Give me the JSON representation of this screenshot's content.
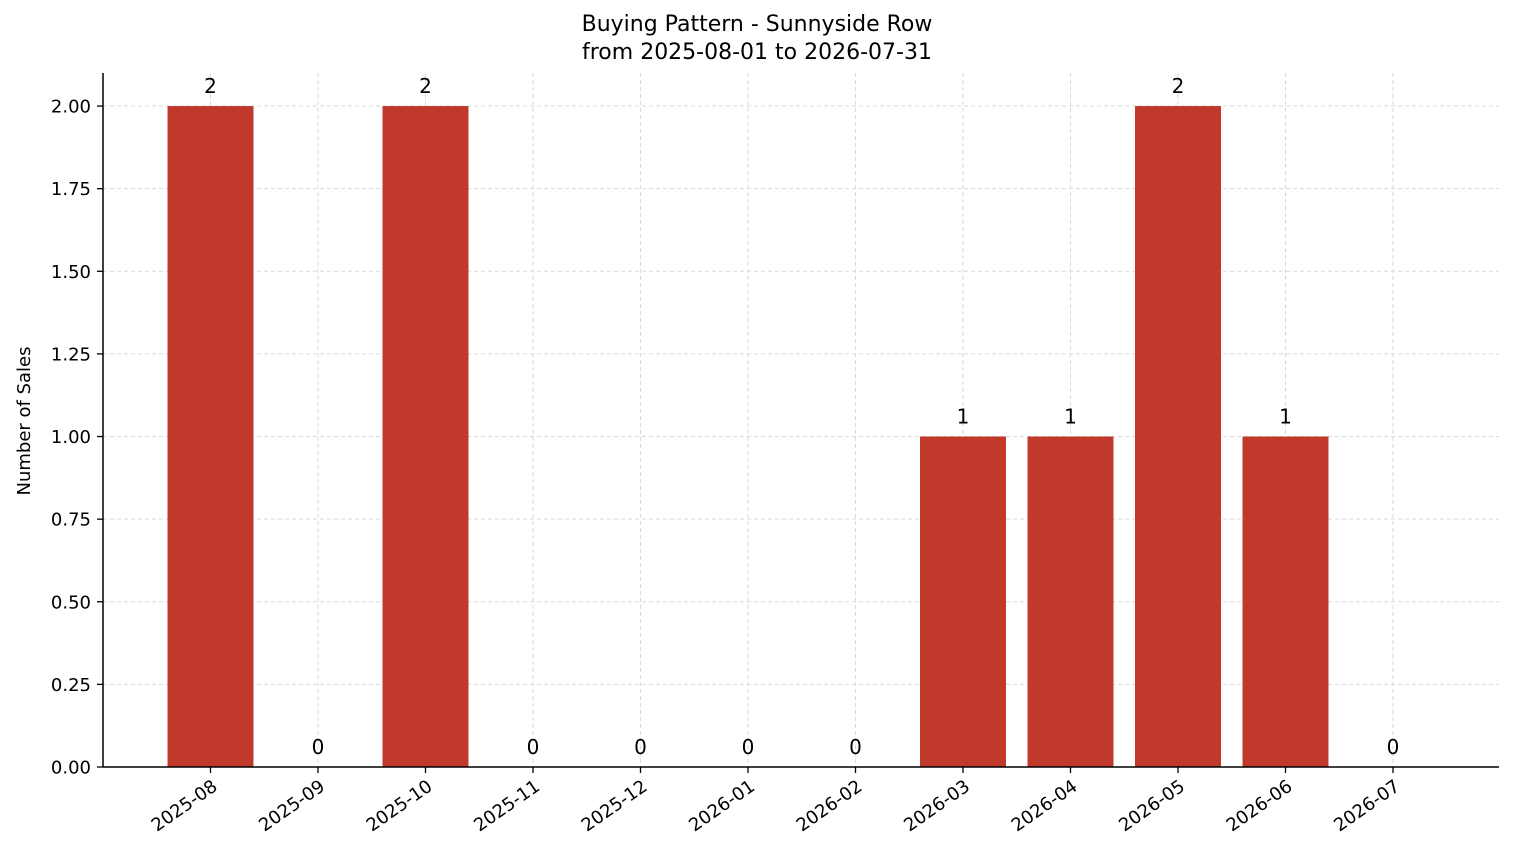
{
  "chart_data": {
    "type": "bar",
    "title": "Buying Pattern - Sunnyside Row",
    "subtitle": "from 2025-08-01 to 2026-07-31",
    "xlabel": "",
    "ylabel": "Number of Sales",
    "categories": [
      "2025-08",
      "2025-09",
      "2025-10",
      "2025-11",
      "2025-12",
      "2026-01",
      "2026-02",
      "2026-03",
      "2026-04",
      "2026-05",
      "2026-06",
      "2026-07"
    ],
    "values": [
      2,
      0,
      2,
      0,
      0,
      0,
      0,
      1,
      1,
      2,
      1,
      0
    ],
    "ylim": [
      0,
      2.1
    ],
    "yticks": [
      "0.00",
      "0.25",
      "0.50",
      "0.75",
      "1.00",
      "1.25",
      "1.50",
      "1.75",
      "2.00"
    ],
    "grid": true,
    "bar_color": "#c0392b",
    "grid_color": "#d9d9d9",
    "legend": "none"
  }
}
